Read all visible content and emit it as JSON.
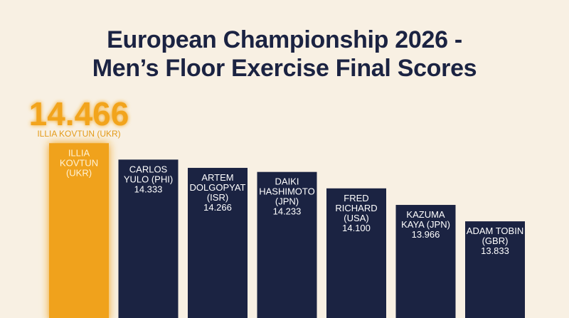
{
  "chart_data": {
    "type": "bar",
    "title_lines": [
      "European Championship 2026 -",
      "Men’s Floor Exercise Final Scores"
    ],
    "xlabel": "",
    "ylabel": "",
    "categories": [
      "ILLIA KOVTUN (UKR)",
      "CARLOS YULO (PHI)",
      "ARTEM DOLGOPYAT (ISR)",
      "DAIKI HASHIMOTO (JPN)",
      "FRED RICHARD (USA)",
      "KAZUMA KAYA (JPN)",
      "ADAM TOBIN (GBR)"
    ],
    "bar_label_lines": [
      [
        "ILLIA",
        "KOVTUN",
        "(UKR)"
      ],
      [
        "CARLOS",
        "YULO (PHI)",
        "14.333"
      ],
      [
        "ARTEM",
        "DOLGOPYAT",
        "(ISR)",
        "14.266"
      ],
      [
        "DAIKI",
        "HASHIMOTO",
        "(JPN)",
        "14.233"
      ],
      [
        "FRED",
        "RICHARD",
        "(USA)",
        "14.100"
      ],
      [
        "KAZUMA",
        "KAYA (JPN)",
        "13.966"
      ],
      [
        "ADAM TOBIN",
        "(GBR)",
        "13.833"
      ]
    ],
    "values": [
      14.466,
      14.333,
      14.266,
      14.233,
      14.1,
      13.966,
      13.833
    ],
    "highlight": {
      "index": 0,
      "value_label": "14.466",
      "name_label": "ILLIA KOVTUN (UKR)"
    },
    "ylim": [
      13.05,
      14.6
    ],
    "grid": false,
    "legend": "none",
    "colors": {
      "background": "#f8f0e3",
      "bar": "#1b2342",
      "highlight_bar": "#f0a21b",
      "title": "#1b2342",
      "highlight_text": "#f2a41c"
    }
  }
}
